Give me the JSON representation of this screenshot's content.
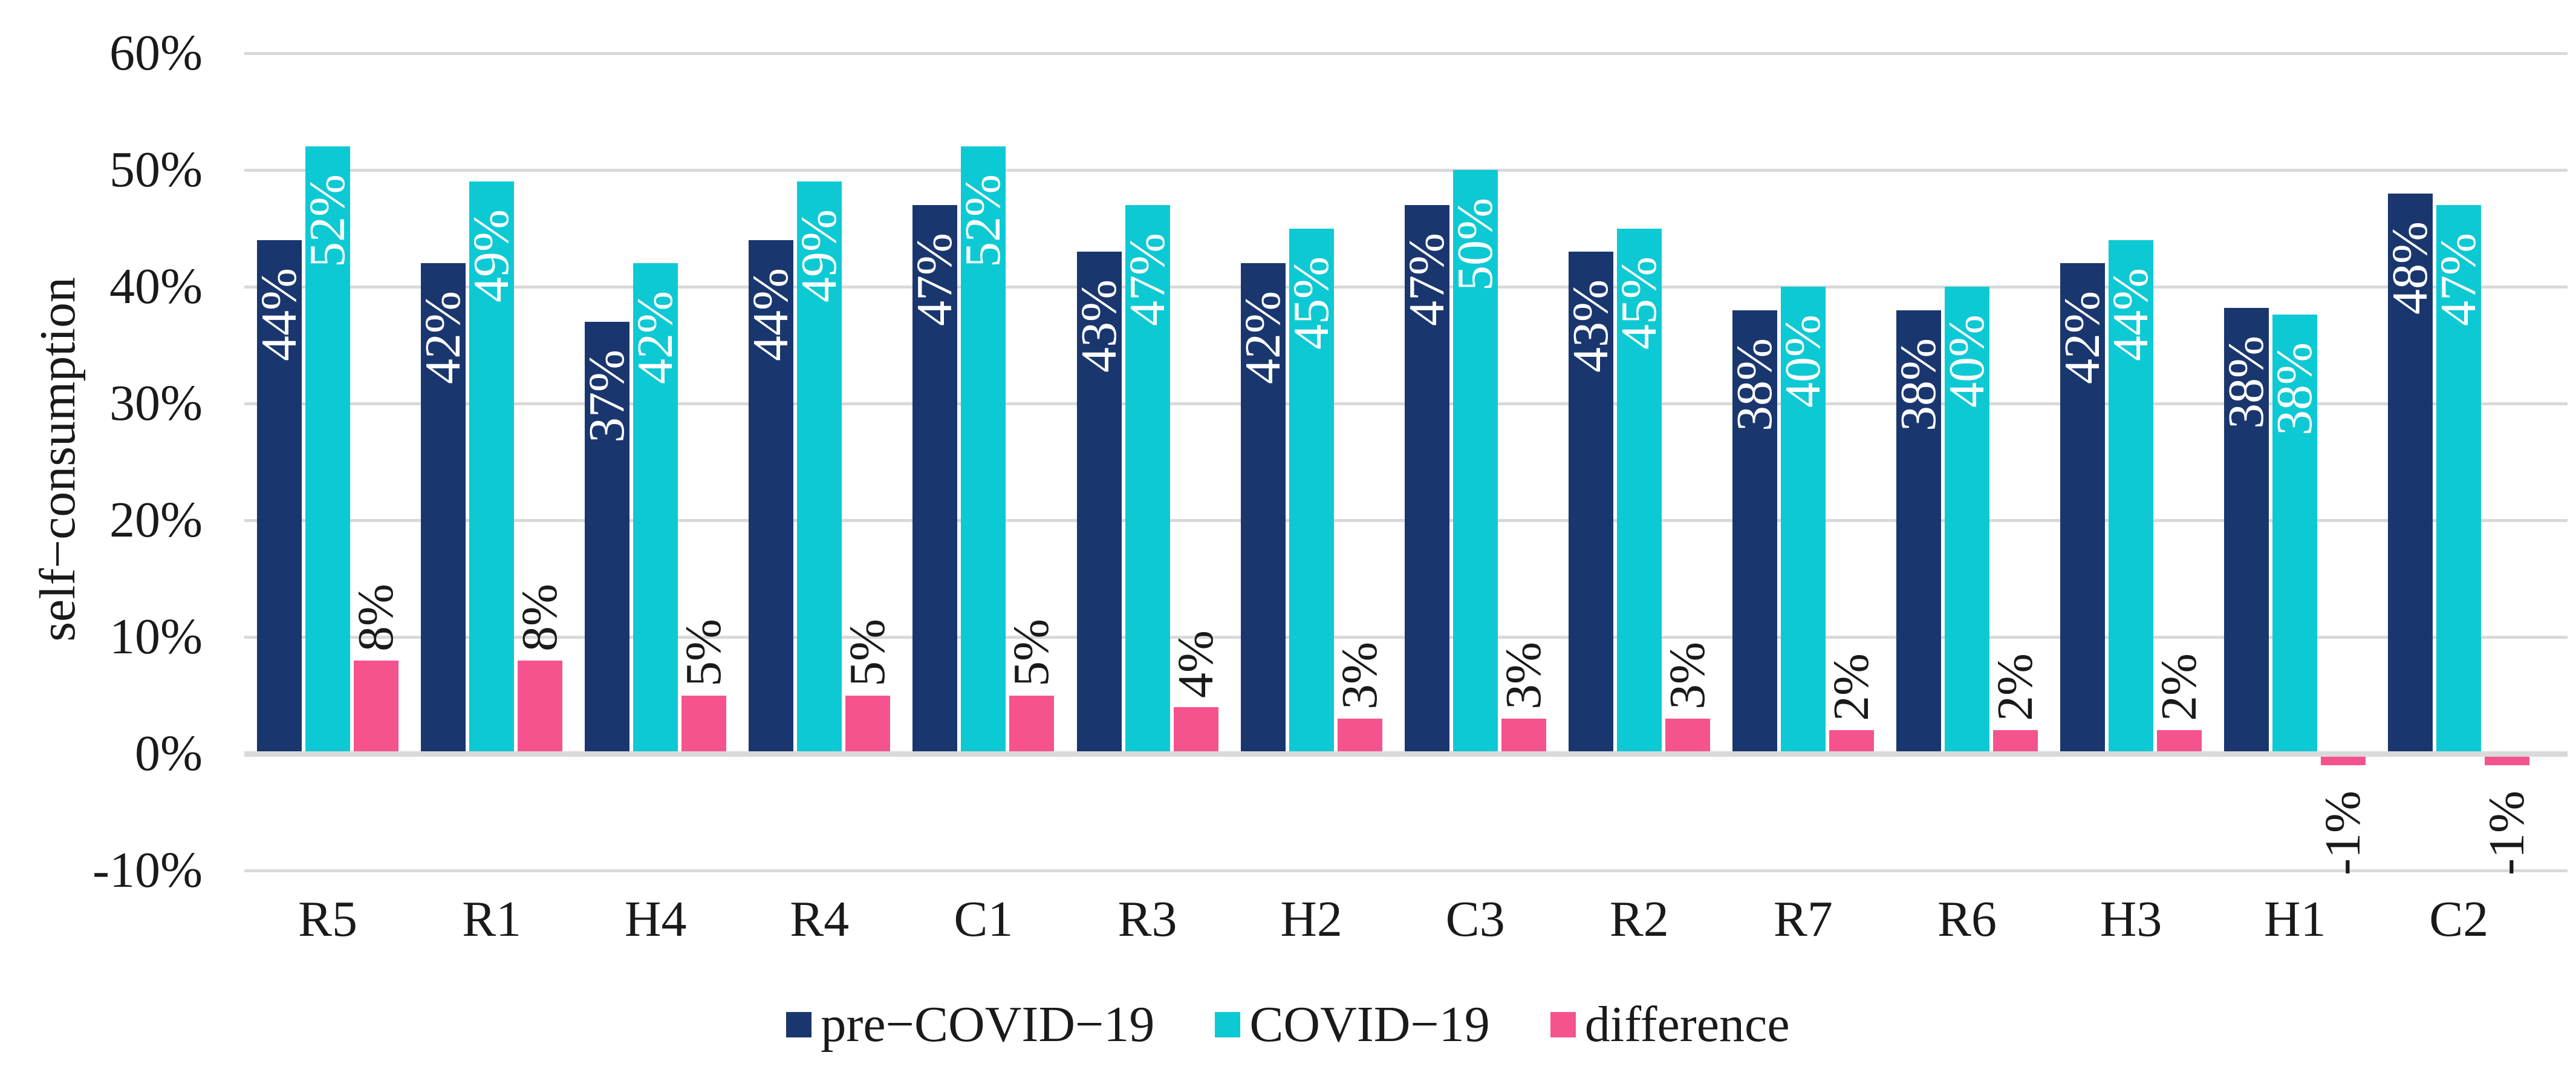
{
  "chart_data": {
    "type": "bar",
    "title": "",
    "ylabel": "self−consumption",
    "ylim": [
      -10,
      60
    ],
    "grid": true,
    "legend_position": "bottom",
    "background_color": "#FFFFFF",
    "grid_color": "#D9D9D9",
    "text_color": "#1A1A1A",
    "categories": [
      "R5",
      "R1",
      "H4",
      "R4",
      "C1",
      "R3",
      "H2",
      "C3",
      "R2",
      "R7",
      "R6",
      "H3",
      "H1",
      "C2"
    ],
    "yticks": [
      {
        "v": 60,
        "label": "60%"
      },
      {
        "v": 50,
        "label": "50%"
      },
      {
        "v": 40,
        "label": "40%"
      },
      {
        "v": 30,
        "label": "30%"
      },
      {
        "v": 20,
        "label": "20%"
      },
      {
        "v": 10,
        "label": "10%"
      },
      {
        "v": 0,
        "label": "0%"
      },
      {
        "v": -10,
        "label": "-10%"
      }
    ],
    "series": [
      {
        "key": "pre-covid-19",
        "name": "pre−COVID−19",
        "color": "#1A366E",
        "label_color": "#FFFFFF",
        "values": [
          44,
          42,
          37,
          44,
          47,
          43,
          42,
          47,
          43,
          38,
          38,
          42,
          38.2,
          48
        ],
        "labels": [
          "44%",
          "42%",
          "37%",
          "44%",
          "47%",
          "43%",
          "42%",
          "47%",
          "43%",
          "38%",
          "38%",
          "42%",
          "38%",
          "48%"
        ]
      },
      {
        "key": "covid-19",
        "name": "COVID−19",
        "color": "#0DC9D4",
        "label_color": "#FFFFFF",
        "values": [
          52,
          49,
          42,
          49,
          52,
          47,
          45,
          50,
          45,
          40,
          40,
          44,
          37.6,
          47
        ],
        "labels": [
          "52%",
          "49%",
          "42%",
          "49%",
          "52%",
          "47%",
          "45%",
          "50%",
          "45%",
          "40%",
          "40%",
          "44%",
          "38%",
          "47%"
        ]
      },
      {
        "key": "difference",
        "name": "difference",
        "color": "#F5538E",
        "label_color": "#1A1A1A",
        "values": [
          8,
          8,
          5,
          5,
          5,
          4,
          3,
          3,
          3,
          2,
          2,
          2,
          -1,
          -1
        ],
        "labels": [
          "8%",
          "8%",
          "5%",
          "5%",
          "5%",
          "4%",
          "3%",
          "3%",
          "3%",
          "2%",
          "2%",
          "2%",
          "-1%",
          "-1%"
        ]
      }
    ]
  }
}
